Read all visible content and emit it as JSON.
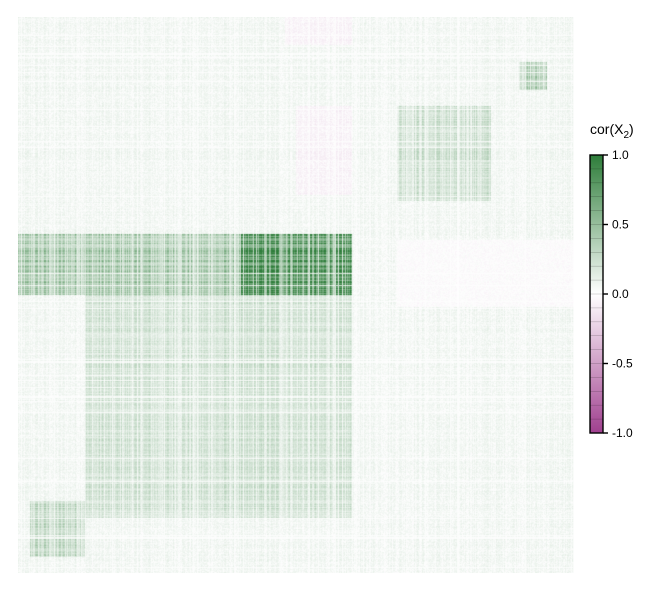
{
  "chart_data": {
    "type": "heatmap",
    "matrix": "correlation matrix of X2 (dense, symmetric; values mostly near 0, weak positive block structure)",
    "value_range": [
      -1.0,
      1.0
    ],
    "colorbar": {
      "title_main": "cor(X",
      "title_sub": "2",
      "title_close": ")",
      "ticks": [
        {
          "value": 1.0,
          "label": "1.0"
        },
        {
          "value": 0.5,
          "label": "0.5"
        },
        {
          "value": 0.0,
          "label": "0.0"
        },
        {
          "value": -0.5,
          "label": "-0.5"
        },
        {
          "value": -1.0,
          "label": "-1.0"
        }
      ],
      "colors": {
        "high": "#2e7d3a",
        "mid": "#ffffff",
        "low": "#a0408f"
      }
    },
    "blocks": [
      {
        "rows": [
          0.0,
          1.0
        ],
        "cols": [
          0.0,
          1.0
        ],
        "level": 0.05
      },
      {
        "rows": [
          0.39,
          0.5
        ],
        "cols": [
          0.0,
          0.6
        ],
        "level": 0.28
      },
      {
        "rows": [
          0.39,
          0.5
        ],
        "cols": [
          0.4,
          0.6
        ],
        "level": 0.36
      },
      {
        "rows": [
          0.5,
          0.9
        ],
        "cols": [
          0.12,
          0.6
        ],
        "level": 0.12
      },
      {
        "rows": [
          0.16,
          0.33
        ],
        "cols": [
          0.68,
          0.85
        ],
        "level": 0.13
      },
      {
        "rows": [
          0.08,
          0.13
        ],
        "cols": [
          0.9,
          0.95
        ],
        "level": 0.22
      },
      {
        "rows": [
          0.87,
          0.97
        ],
        "cols": [
          0.02,
          0.12
        ],
        "level": 0.18
      },
      {
        "rows": [
          0.0,
          0.05
        ],
        "cols": [
          0.48,
          0.6
        ],
        "level": -0.1
      },
      {
        "rows": [
          0.16,
          0.32
        ],
        "cols": [
          0.5,
          0.6
        ],
        "level": -0.1
      },
      {
        "rows": [
          0.4,
          0.52
        ],
        "cols": [
          0.68,
          1.0
        ],
        "level": -0.06
      }
    ]
  }
}
